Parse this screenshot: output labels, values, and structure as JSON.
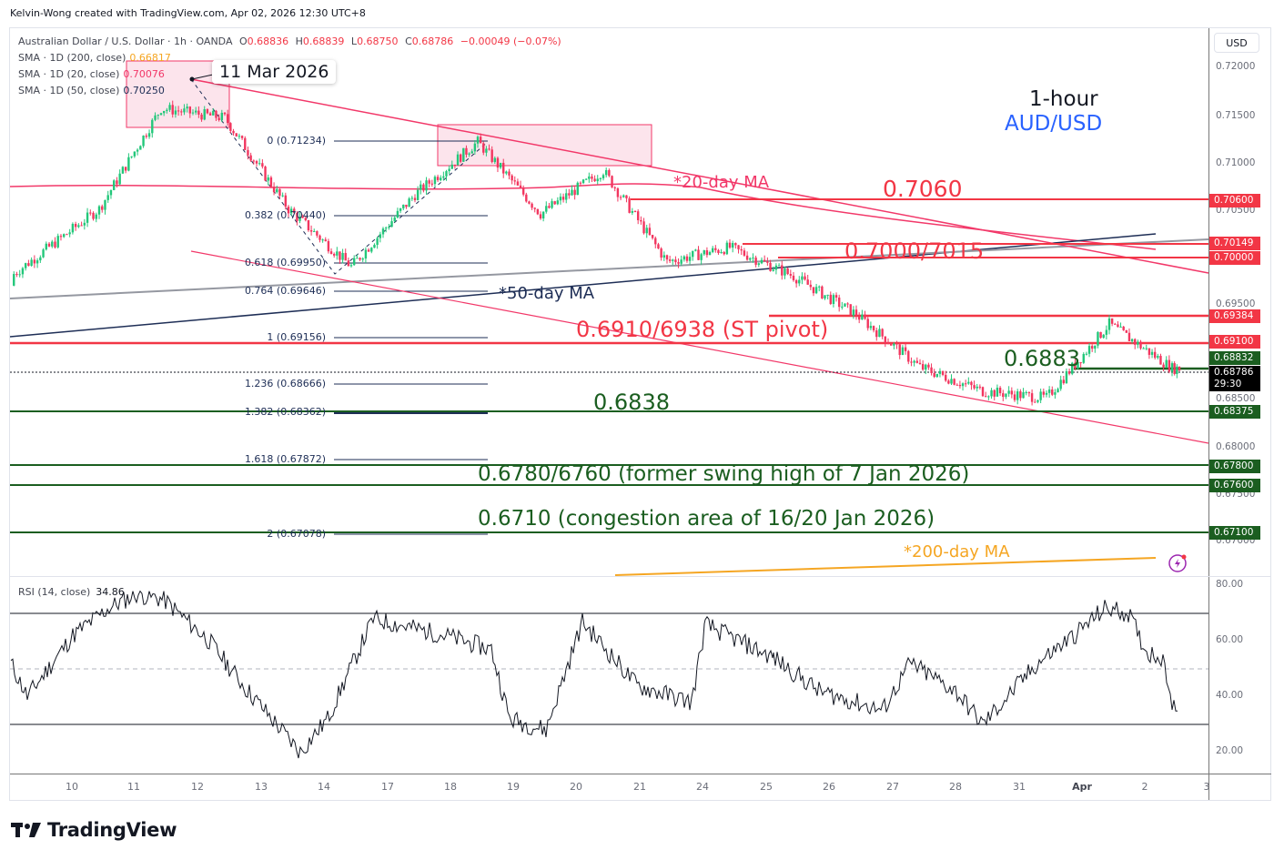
{
  "credit": "Kelvin-Wong created with TradingView.com, Apr 02, 2026 12:30 UTC+8",
  "header": {
    "symbol": "Australian Dollar / U.S. Dollar · 1h · OANDA",
    "open_label": "O",
    "open": "0.68836",
    "high_label": "H",
    "high": "0.68839",
    "low_label": "L",
    "low": "0.68750",
    "close_label": "C",
    "close": "0.68786",
    "change": "−0.00049 (−0.07%)"
  },
  "indicators": [
    {
      "label": "SMA · 1D (200, close)",
      "value": "0.66817",
      "color": "#f5a623"
    },
    {
      "label": "SMA · 1D (20, close)",
      "value": "0.70076",
      "color": "#f23869"
    },
    {
      "label": "SMA · 1D (50, close)",
      "value": "0.70250",
      "color": "#1e2e56"
    }
  ],
  "currency_button": "USD",
  "title": {
    "timeframe": "1-hour",
    "pair": "AUD/USD"
  },
  "date_callout": "11 Mar 2026",
  "price_axis": [
    "0.72000",
    "0.71500",
    "0.71000",
    "0.70500",
    "0.69500",
    "0.68500",
    "0.68000",
    "0.67500",
    "0.67000"
  ],
  "price_tags": [
    {
      "value": "0.70600",
      "color": "#f23645"
    },
    {
      "value": "0.70149",
      "color": "#f23645"
    },
    {
      "value": "0.70000",
      "color": "#f23645"
    },
    {
      "value": "0.69384",
      "color": "#f23645"
    },
    {
      "value": "0.69100",
      "color": "#f23645"
    },
    {
      "value": "0.68832",
      "color": "#1b5e20"
    },
    {
      "value": "0.68786",
      "color": "#000000",
      "countdown": "29:30"
    },
    {
      "value": "0.68375",
      "color": "#1b5e20"
    },
    {
      "value": "0.67800",
      "color": "#1b5e20"
    },
    {
      "value": "0.67600",
      "color": "#1b5e20"
    },
    {
      "value": "0.67100",
      "color": "#1b5e20"
    }
  ],
  "fib_levels": [
    {
      "label": "0 (0.71234)"
    },
    {
      "label": "0.382 (0.70440)"
    },
    {
      "label": "0.618 (0.69950)"
    },
    {
      "label": "0.764 (0.69646)"
    },
    {
      "label": "1 (0.69156)"
    },
    {
      "label": "1.236 (0.68666)"
    },
    {
      "label": "1.382 (0.68362)"
    },
    {
      "label": "1.618 (0.67872)"
    },
    {
      "label": "2 (0.67078)"
    }
  ],
  "annotations": {
    "ma20": "*20-day MA",
    "ma50": "*50-day MA",
    "ma200": "*200-day MA",
    "r1": "0.7060",
    "r2": "0.7000/7015",
    "pivot": "0.6910/6938 (ST pivot)",
    "s0": "0.6883",
    "s1": "0.6838",
    "s2": "0.6780/6760 (former swing high of 7 Jan 2026)",
    "s3": "0.6710 (congestion area of 16/20 Jan 2026)"
  },
  "rsi": {
    "label": "RSI (14, close)",
    "value": "34.86",
    "axis": [
      "80.00",
      "60.00",
      "40.00",
      "20.00"
    ]
  },
  "x_axis": [
    "10",
    "11",
    "12",
    "13",
    "14",
    "17",
    "18",
    "19",
    "20",
    "21",
    "24",
    "25",
    "26",
    "27",
    "28",
    "31",
    "Apr",
    "2",
    "3"
  ],
  "logo": "TradingView",
  "chart_data": {
    "type": "candlestick",
    "title": "AUD/USD 1-hour",
    "symbol": "Australian Dollar / U.S. Dollar · 1h · OANDA",
    "ohlc_last": {
      "open": 0.68836,
      "high": 0.68839,
      "low": 0.6875,
      "close": 0.68786,
      "change": -0.00049,
      "change_pct": -0.07
    },
    "x_ticks": [
      "10",
      "11",
      "12",
      "13",
      "14",
      "17",
      "18",
      "19",
      "20",
      "21",
      "24",
      "25",
      "26",
      "27",
      "28",
      "31",
      "Apr",
      "2",
      "3"
    ],
    "ylim": [
      0.6665,
      0.7225
    ],
    "approx_daily_closes": {
      "x": [
        "10",
        "11",
        "12",
        "13",
        "14",
        "17",
        "18",
        "19",
        "20",
        "21",
        "24",
        "25",
        "26",
        "27",
        "28",
        "31",
        "Apr",
        "2"
      ],
      "values": [
        0.7045,
        0.715,
        0.714,
        0.7045,
        0.6985,
        0.706,
        0.7115,
        0.704,
        0.7085,
        0.699,
        0.7005,
        0.6975,
        0.6935,
        0.688,
        0.6855,
        0.6848,
        0.6925,
        0.6879
      ]
    },
    "moving_averages": [
      {
        "name": "SMA 1D 200",
        "value": 0.66817,
        "color": "#f5a623"
      },
      {
        "name": "SMA 1D 20",
        "value": 0.70076,
        "color": "#f23869"
      },
      {
        "name": "SMA 1D 50",
        "value": 0.7025,
        "color": "#1e2e56"
      }
    ],
    "fibonacci": [
      {
        "ratio": 0,
        "price": 0.71234
      },
      {
        "ratio": 0.382,
        "price": 0.7044
      },
      {
        "ratio": 0.618,
        "price": 0.6995
      },
      {
        "ratio": 0.764,
        "price": 0.69646
      },
      {
        "ratio": 1,
        "price": 0.69156
      },
      {
        "ratio": 1.236,
        "price": 0.68666
      },
      {
        "ratio": 1.382,
        "price": 0.68362
      },
      {
        "ratio": 1.618,
        "price": 0.67872
      },
      {
        "ratio": 2,
        "price": 0.67078
      }
    ],
    "horizontal_levels": {
      "resistance": [
        0.706,
        0.70149,
        0.7,
        0.69384,
        0.691
      ],
      "support": [
        0.68832,
        0.68375,
        0.678,
        0.676,
        0.671
      ]
    },
    "rsi": {
      "period": 14,
      "last": 34.86,
      "ylim": [
        10,
        85
      ],
      "bands": [
        70,
        50,
        30
      ]
    }
  }
}
